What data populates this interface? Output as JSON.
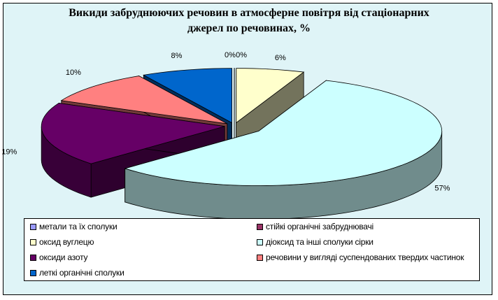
{
  "chart_data": {
    "type": "pie",
    "title": "Викиди забруднюючих речовин в атмосферне повітря від стаціонарних джерел по речовинах, %",
    "title_lines": [
      "Викиди забруднюючих речовин в атмосферне повітря від стаціонарних",
      "джерел по речовинах, %"
    ],
    "three_d": true,
    "legend_position": "bottom",
    "slices": [
      {
        "label": "метали та їх сполуки",
        "value": 0,
        "display": "0%",
        "color": "#9999ff"
      },
      {
        "label": "стійкі органічні забруднювачі",
        "value": 0,
        "display": "0%",
        "color": "#993366"
      },
      {
        "label": "оксид вуглецю",
        "value": 6,
        "display": "6%",
        "color": "#ffffcc"
      },
      {
        "label": "діоксид та інші сполуки сірки",
        "value": 57,
        "display": "57%",
        "color": "#ccffff"
      },
      {
        "label": "оксиди азоту",
        "value": 19,
        "display": "19%",
        "color": "#660066"
      },
      {
        "label": "речовини у вигляді суспендованих твердих частинок",
        "value": 10,
        "display": "10%",
        "color": "#ff8080"
      },
      {
        "label": "леткі органічні сполуки",
        "value": 8,
        "display": "8%",
        "color": "#0066cc"
      }
    ]
  }
}
